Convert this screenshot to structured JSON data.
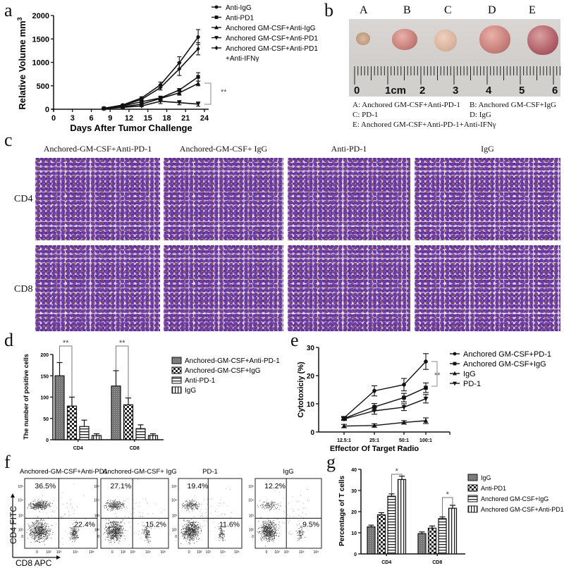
{
  "panel_labels": {
    "a": "a",
    "b": "b",
    "c": "c",
    "d": "d",
    "e": "e",
    "f": "f",
    "g": "g"
  },
  "panel_b": {
    "sample_letters": [
      "A",
      "B",
      "C",
      "D",
      "E"
    ],
    "ruler_numbers": [
      "0",
      "1cm",
      "2",
      "3",
      "4",
      "5",
      "6"
    ],
    "captions": [
      "A: Anchored GM-CSF+Anti-PD-1",
      "B: Anchored GM-CSF+IgG",
      "C: PD-1",
      "D: IgG",
      "E: Anchored GM-CSF+Anti-PD-1+Anti-IFNγ"
    ]
  },
  "panel_c": {
    "columns": [
      "Anchored-GM-CSF+Anti-PD-1",
      "Anchored-GM-CSF+ IgG",
      "Anti-PD-1",
      "IgG"
    ],
    "rows": [
      "CD4",
      "CD8"
    ]
  },
  "chart_data": [
    {
      "id": "a",
      "type": "line",
      "title": "",
      "xlabel": "Days After Tumor Challenge",
      "ylabel": "Relative Volume mm",
      "ylabel_sup": "3",
      "xlim": [
        0,
        24
      ],
      "ylim": [
        0,
        2000
      ],
      "xticks": [
        0,
        3,
        6,
        9,
        12,
        15,
        18,
        21,
        24
      ],
      "yticks": [
        0,
        500,
        1000,
        1500,
        2000
      ],
      "x": [
        8,
        11,
        14,
        17,
        20,
        23
      ],
      "series": [
        {
          "name": "Anti-IgG",
          "marker": "circle",
          "values": [
            20,
            90,
            240,
            520,
            990,
            1540
          ],
          "errors": [
            10,
            15,
            25,
            60,
            130,
            160
          ]
        },
        {
          "name": "Anti-PD1",
          "marker": "square",
          "values": [
            20,
            70,
            160,
            240,
            410,
            690
          ],
          "errors": [
            8,
            12,
            20,
            40,
            30,
            90
          ]
        },
        {
          "name": "Anchored GM-CSF+Anti-IgG",
          "marker": "triangle-up",
          "values": [
            15,
            50,
            110,
            230,
            350,
            550
          ],
          "errors": [
            8,
            10,
            20,
            40,
            50,
            50
          ]
        },
        {
          "name": "Anchored GM-CSF+Anti-PD1",
          "marker": "triangle-down",
          "values": [
            10,
            40,
            70,
            170,
            140,
            110
          ],
          "errors": [
            8,
            10,
            15,
            50,
            45,
            45
          ]
        },
        {
          "name": "Anchored GM-CSF+Anti-PD1",
          "name_line2": "+Anti-IFNγ",
          "marker": "diamond",
          "values": [
            20,
            80,
            210,
            460,
            860,
            1290
          ],
          "errors": [
            8,
            12,
            25,
            50,
            140,
            130
          ]
        }
      ],
      "annotation": "**",
      "legend": "top-right"
    },
    {
      "id": "d",
      "type": "bar",
      "ylabel": "The number of positive cells",
      "ylim": [
        0,
        200
      ],
      "yticks": [
        0,
        50,
        100,
        150,
        200
      ],
      "categories": [
        "CD4",
        "CD8"
      ],
      "series": [
        {
          "name": "Anchored-GM-CSF+Anti-PD-1",
          "pattern": "dense",
          "values": [
            150,
            126
          ],
          "errors": [
            31,
            36
          ]
        },
        {
          "name": "Anchored-GM-CSF+IgG",
          "pattern": "checker",
          "values": [
            79,
            82
          ],
          "errors": [
            21,
            16
          ]
        },
        {
          "name": "Anti-PD-1",
          "pattern": "hlines",
          "values": [
            31,
            26
          ],
          "errors": [
            15,
            9
          ]
        },
        {
          "name": "IgG",
          "pattern": "vlines",
          "values": [
            10,
            10
          ],
          "errors": [
            4,
            4
          ]
        }
      ],
      "annotations": [
        "**",
        "**"
      ],
      "legend": "right"
    },
    {
      "id": "e",
      "type": "line",
      "xlabel": "Effector Of Target Radio",
      "ylabel": "Cytotoxiciy (%)",
      "ylim": [
        0,
        30
      ],
      "yticks": [
        0,
        10,
        20,
        30
      ],
      "categories": [
        "12.5:1",
        "25:1",
        "50:1",
        "100:1"
      ],
      "series": [
        {
          "name": "Anchored GM-CSF+PD-1",
          "marker": "circle",
          "values": [
            5,
            14.6,
            16.8,
            25
          ],
          "errors": [
            0.5,
            1.8,
            2.2,
            2.8
          ]
        },
        {
          "name": "Anchored GM-CSF+IgG",
          "marker": "square",
          "values": [
            4.8,
            8.9,
            12.2,
            15.7
          ],
          "errors": [
            0.5,
            1.2,
            1.5,
            1.7
          ]
        },
        {
          "name": "IgG",
          "marker": "triangle-up",
          "values": [
            2.1,
            2.3,
            3.4,
            4.0
          ],
          "errors": [
            0.6,
            0.6,
            0.6,
            1.0
          ]
        },
        {
          "name": "PD-1",
          "marker": "triangle-down",
          "values": [
            4.6,
            7.5,
            8.8,
            11.8
          ],
          "errors": [
            0.5,
            1.2,
            1.2,
            1.5
          ]
        }
      ],
      "annotation": "**",
      "legend": "right"
    },
    {
      "id": "f",
      "type": "scatter",
      "xlabel": "CD8 APC",
      "ylabel": "CD4 FITC",
      "tick_labels_x": [
        "0",
        "10²",
        "10³",
        "10⁴",
        "10⁵"
      ],
      "tick_labels_y": [
        "0",
        "10²",
        "10³",
        "10⁴",
        "10⁵"
      ],
      "plots": [
        {
          "title": "Anchored-GM-CSF+Anti-PD1",
          "upper_left": "36.5%",
          "lower_right": "22.4%",
          "cd4_fraction": 0.365,
          "cd8_fraction": 0.224
        },
        {
          "title": "Anchored-GM-CSF+ IgG",
          "upper_left": "27.1%",
          "lower_right": "15.2%",
          "cd4_fraction": 0.271,
          "cd8_fraction": 0.152
        },
        {
          "title": "PD-1",
          "upper_left": "19.4%",
          "lower_right": "11.6%",
          "cd4_fraction": 0.194,
          "cd8_fraction": 0.116
        },
        {
          "title": "IgG",
          "upper_left": "12.2%",
          "lower_right": "9.5%",
          "cd4_fraction": 0.122,
          "cd8_fraction": 0.095
        }
      ]
    },
    {
      "id": "g",
      "type": "bar",
      "ylabel": "Percentage of T cells",
      "ylim": [
        0,
        40
      ],
      "yticks": [
        0,
        10,
        20,
        30,
        40
      ],
      "categories": [
        "CD4",
        "CD8"
      ],
      "series": [
        {
          "name": "IgG",
          "pattern": "dense",
          "values": [
            12.8,
            9.6
          ],
          "errors": [
            0.8,
            0.8
          ]
        },
        {
          "name": "Anti-PD1",
          "pattern": "checker",
          "values": [
            18.5,
            12.2
          ],
          "errors": [
            1.0,
            1.0
          ]
        },
        {
          "name": "Anchored GM-CSF+IgG",
          "pattern": "hlines",
          "values": [
            27.3,
            16.7
          ],
          "errors": [
            1.1,
            0.8
          ]
        },
        {
          "name": "Anchored GM-CSF+Anti-PD1",
          "pattern": "vlines",
          "values": [
            35.2,
            21.6
          ],
          "errors": [
            1.6,
            1.4
          ]
        }
      ],
      "annotations": [
        "*",
        "*"
      ],
      "legend": "right"
    }
  ]
}
